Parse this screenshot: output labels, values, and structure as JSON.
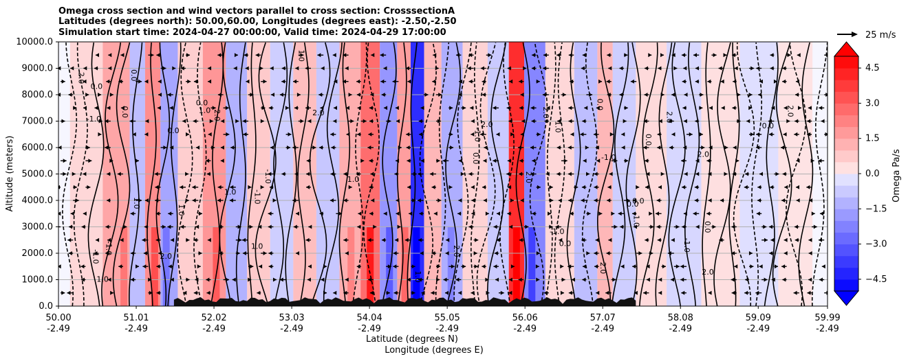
{
  "chart_data": {
    "type": "contour",
    "title_lines": [
      "Omega cross section and wind vectors parallel to cross section: CrosssectionA",
      "Latitudes (degrees north): 50.00,60.00, Longitudes (degrees east): -2.50,-2.50",
      "Simulation start time: 2024-04-27 00:00:00, Valid time: 2024-04-29 17:00:00"
    ],
    "ylabel": "Altitude (meters)",
    "xlabel_lat": "Latitude (degrees N)",
    "xlabel_lon": "Longitude (degrees E)",
    "x_ticks": [
      {
        "lat": "50.00",
        "lon": "-2.49"
      },
      {
        "lat": "51.01",
        "lon": "-2.49"
      },
      {
        "lat": "52.02",
        "lon": "-2.49"
      },
      {
        "lat": "53.03",
        "lon": "-2.49"
      },
      {
        "lat": "54.04",
        "lon": "-2.49"
      },
      {
        "lat": "55.05",
        "lon": "-2.49"
      },
      {
        "lat": "56.06",
        "lon": "-2.49"
      },
      {
        "lat": "57.07",
        "lon": "-2.49"
      },
      {
        "lat": "58.08",
        "lon": "-2.49"
      },
      {
        "lat": "59.09",
        "lon": "-2.49"
      },
      {
        "lat": "59.99",
        "lon": "-2.49"
      }
    ],
    "x_range": [
      50.0,
      59.99
    ],
    "y_ticks": [
      "0.0",
      "1000.0",
      "2000.0",
      "3000.0",
      "4000.0",
      "5000.0",
      "6000.0",
      "7000.0",
      "8000.0",
      "9000.0",
      "10000.0"
    ],
    "y_range": [
      0,
      10000
    ],
    "grid": "horizontal",
    "colorbar": {
      "label": "Omega Pa/s",
      "ticks": [
        "4.5",
        "3.0",
        "1.5",
        "0.0",
        "−1.5",
        "−3.0",
        "−4.5"
      ],
      "range": [
        -5.0,
        5.0
      ],
      "levels": 20,
      "positive_color": "#ff0000",
      "negative_color": "#0000ff",
      "extend": "both"
    },
    "quiver_key": "25 m/s",
    "contour_label_values": [
      "0.0",
      "1.0",
      "-1.0",
      "2.0"
    ],
    "omega_bands": [
      {
        "lat": 50.3,
        "omega": 0.6
      },
      {
        "lat": 50.85,
        "omega": 1.8
      },
      {
        "lat": 51.0,
        "omega": -1.2
      },
      {
        "lat": 51.25,
        "omega": 2.4
      },
      {
        "lat": 51.4,
        "omega": -1.8
      },
      {
        "lat": 51.7,
        "omega": 0.8
      },
      {
        "lat": 52.05,
        "omega": 2.2
      },
      {
        "lat": 52.3,
        "omega": -1.5
      },
      {
        "lat": 52.6,
        "omega": 0.9
      },
      {
        "lat": 52.9,
        "omega": -0.8
      },
      {
        "lat": 53.2,
        "omega": 1.2
      },
      {
        "lat": 53.5,
        "omega": -1.0
      },
      {
        "lat": 53.8,
        "omega": 1.6
      },
      {
        "lat": 54.05,
        "omega": 3.2
      },
      {
        "lat": 54.3,
        "omega": -2.2
      },
      {
        "lat": 54.5,
        "omega": 2.0
      },
      {
        "lat": 54.65,
        "omega": -4.8
      },
      {
        "lat": 54.85,
        "omega": 1.4
      },
      {
        "lat": 55.1,
        "omega": -1.6
      },
      {
        "lat": 55.4,
        "omega": 0.7
      },
      {
        "lat": 55.75,
        "omega": -0.9
      },
      {
        "lat": 55.95,
        "omega": 4.8
      },
      {
        "lat": 56.15,
        "omega": -2.6
      },
      {
        "lat": 56.5,
        "omega": 0.6
      },
      {
        "lat": 56.9,
        "omega": -1.2
      },
      {
        "lat": 57.1,
        "omega": 1.4
      },
      {
        "lat": 57.3,
        "omega": -0.8
      },
      {
        "lat": 57.7,
        "omega": 0.5
      },
      {
        "lat": 58.1,
        "omega": -0.6
      },
      {
        "lat": 58.6,
        "omega": 0.4
      },
      {
        "lat": 59.1,
        "omega": -0.4
      },
      {
        "lat": 59.6,
        "omega": 0.3
      }
    ]
  }
}
